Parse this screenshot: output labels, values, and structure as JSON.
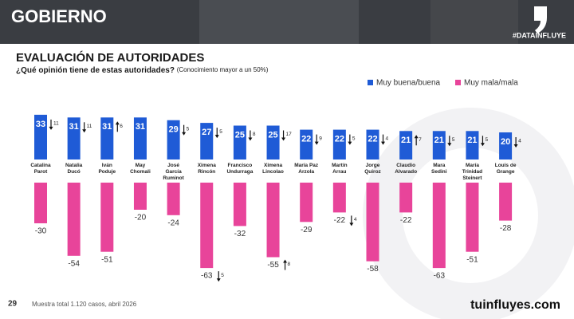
{
  "header": {
    "title": "GOBIERNO",
    "tag": "#DATAINFLUYE"
  },
  "chart_data": {
    "type": "bar",
    "title": "EVALUACIÓN DE AUTORIDADES",
    "subtitle": "¿Qué opinión tiene de estas autoridades?",
    "note": "(Conocimiento mayor a un 50%)",
    "categories": [
      [
        "Catalina",
        "Parot"
      ],
      [
        "Natalia",
        "Ducó"
      ],
      [
        "Iván",
        "Poduje"
      ],
      [
        "May",
        "Chomali"
      ],
      [
        "José",
        "García",
        "Ruminot"
      ],
      [
        "Ximena",
        "Rincón"
      ],
      [
        "Francisco",
        "Undurraga"
      ],
      [
        "Ximena",
        "Lincolao"
      ],
      [
        "María Paz",
        "Arzola"
      ],
      [
        "Martín",
        "Arrau"
      ],
      [
        "Jorge",
        "Quiroz"
      ],
      [
        "Claudio",
        "Alvarado"
      ],
      [
        "Mara",
        "Sedini"
      ],
      [
        "María",
        "Trinidad",
        "Steinert"
      ],
      [
        "Louis de",
        "Grange"
      ]
    ],
    "series": [
      {
        "name": "Muy buena/buena",
        "color": "#1f5bd6",
        "values": [
          33,
          31,
          31,
          31,
          29,
          27,
          25,
          25,
          22,
          22,
          22,
          21,
          21,
          21,
          20
        ],
        "changes": [
          {
            "dir": "down",
            "value": 11
          },
          {
            "dir": "down",
            "value": 11
          },
          {
            "dir": "up",
            "value": 6
          },
          null,
          {
            "dir": "down",
            "value": 5
          },
          {
            "dir": "down",
            "value": 5
          },
          {
            "dir": "down",
            "value": 8
          },
          {
            "dir": "down",
            "value": 17
          },
          {
            "dir": "down",
            "value": 9
          },
          {
            "dir": "down",
            "value": 5
          },
          {
            "dir": "down",
            "value": 4
          },
          {
            "dir": "up",
            "value": 7
          },
          {
            "dir": "down",
            "value": 5
          },
          {
            "dir": "down",
            "value": 5
          },
          {
            "dir": "down",
            "value": 4
          }
        ]
      },
      {
        "name": "Muy mala/mala",
        "color": "#e8449a",
        "values": [
          -30,
          -54,
          -51,
          -20,
          -24,
          -63,
          -32,
          -55,
          -29,
          -22,
          -58,
          -22,
          -63,
          -51,
          -28
        ],
        "changes": [
          null,
          null,
          null,
          null,
          null,
          {
            "dir": "down",
            "value": 5
          },
          null,
          {
            "dir": "up",
            "value": 8
          },
          null,
          {
            "dir": "down",
            "value": 4
          },
          null,
          null,
          null,
          null,
          null
        ]
      }
    ]
  },
  "footer": {
    "page": "29",
    "source": "Muestra total 1.120 casos, abril 2026",
    "logo": "tuinfluyes.com"
  }
}
